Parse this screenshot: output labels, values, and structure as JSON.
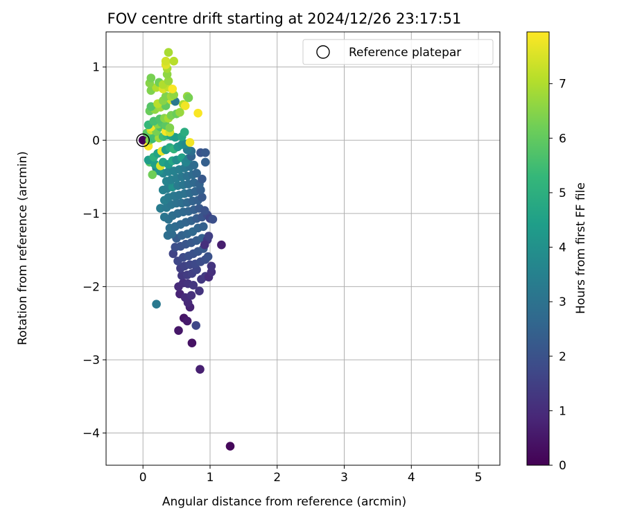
{
  "chart_data": {
    "type": "scatter",
    "title": "FOV centre drift starting at 2024/12/26 23:17:51",
    "xlabel": "Angular distance from reference (arcmin)",
    "ylabel": "Rotation from reference (arcmin)",
    "xlim": [
      -0.55,
      5.32
    ],
    "ylim": [
      -4.44,
      1.48
    ],
    "xticks": [
      0,
      1,
      2,
      3,
      4,
      5
    ],
    "yticks": [
      -4,
      -3,
      -2,
      -1,
      0,
      1
    ],
    "xtick_labels": [
      "0",
      "1",
      "2",
      "3",
      "4",
      "5"
    ],
    "ytick_labels": [
      "−4",
      "−3",
      "−2",
      "−1",
      "0",
      "1"
    ],
    "grid": true,
    "legend": {
      "position": "top-right",
      "label": "Reference platepar"
    },
    "reference_point": {
      "x": 0,
      "y": 0
    },
    "colorbar": {
      "label": "Hours from first FF file",
      "range": [
        0,
        7.95
      ],
      "ticks": [
        0,
        1,
        2,
        3,
        4,
        5,
        6,
        7
      ],
      "tick_labels": [
        "0",
        "1",
        "2",
        "3",
        "4",
        "5",
        "6",
        "7"
      ],
      "colormap": "viridis"
    },
    "points": [
      [
        0.0,
        0.0,
        0.0
      ],
      [
        1.3,
        -4.18,
        0.15
      ],
      [
        0.85,
        -3.13,
        0.7
      ],
      [
        0.73,
        -2.77,
        0.4
      ],
      [
        0.53,
        -2.6,
        0.5
      ],
      [
        0.61,
        -2.43,
        0.45
      ],
      [
        0.66,
        -2.47,
        0.6
      ],
      [
        0.7,
        -2.28,
        0.75
      ],
      [
        0.79,
        -2.53,
        1.7
      ],
      [
        0.2,
        -2.24,
        3.2
      ],
      [
        0.67,
        -2.22,
        0.9
      ],
      [
        0.55,
        -2.1,
        0.8
      ],
      [
        0.63,
        -2.15,
        1.0
      ],
      [
        0.72,
        -2.12,
        1.1
      ],
      [
        0.84,
        -2.06,
        1.2
      ],
      [
        0.53,
        -2.0,
        0.95
      ],
      [
        0.6,
        -1.95,
        1.05
      ],
      [
        0.67,
        -1.96,
        1.15
      ],
      [
        0.75,
        -1.98,
        1.25
      ],
      [
        0.87,
        -1.9,
        1.3
      ],
      [
        0.93,
        -1.86,
        1.35
      ],
      [
        0.98,
        -1.87,
        1.0
      ],
      [
        1.02,
        -1.8,
        1.1
      ],
      [
        1.02,
        -1.72,
        1.2
      ],
      [
        1.17,
        -1.43,
        0.65
      ],
      [
        0.58,
        -1.85,
        1.3
      ],
      [
        0.66,
        -1.84,
        1.4
      ],
      [
        0.73,
        -1.82,
        1.5
      ],
      [
        0.8,
        -1.77,
        1.6
      ],
      [
        0.56,
        -1.75,
        1.45
      ],
      [
        0.62,
        -1.72,
        1.55
      ],
      [
        0.7,
        -1.7,
        1.65
      ],
      [
        0.78,
        -1.69,
        1.75
      ],
      [
        0.86,
        -1.66,
        1.85
      ],
      [
        0.93,
        -1.63,
        1.9
      ],
      [
        0.97,
        -1.59,
        2.0
      ],
      [
        0.52,
        -1.65,
        1.7
      ],
      [
        0.6,
        -1.6,
        1.8
      ],
      [
        0.68,
        -1.58,
        1.9
      ],
      [
        0.75,
        -1.55,
        2.0
      ],
      [
        0.82,
        -1.52,
        2.1
      ],
      [
        0.9,
        -1.48,
        2.2
      ],
      [
        0.45,
        -1.55,
        1.6
      ],
      [
        0.48,
        -1.46,
        1.9
      ],
      [
        0.56,
        -1.45,
        2.0
      ],
      [
        0.64,
        -1.42,
        2.1
      ],
      [
        0.72,
        -1.4,
        2.2
      ],
      [
        0.8,
        -1.37,
        2.3
      ],
      [
        0.88,
        -1.34,
        2.4
      ],
      [
        0.96,
        -1.36,
        1.3
      ],
      [
        0.98,
        -1.31,
        1.5
      ],
      [
        0.92,
        -1.43,
        1.1
      ],
      [
        0.5,
        -1.34,
        2.3
      ],
      [
        0.58,
        -1.3,
        2.5
      ],
      [
        0.66,
        -1.28,
        2.6
      ],
      [
        0.74,
        -1.25,
        2.7
      ],
      [
        0.82,
        -1.2,
        2.6
      ],
      [
        0.9,
        -1.18,
        2.4
      ],
      [
        0.37,
        -1.3,
        2.9
      ],
      [
        0.43,
        -1.28,
        2.8
      ],
      [
        0.4,
        -1.2,
        2.9
      ],
      [
        0.48,
        -1.18,
        2.8
      ],
      [
        0.56,
        -1.15,
        2.7
      ],
      [
        0.64,
        -1.12,
        2.6
      ],
      [
        0.72,
        -1.1,
        2.5
      ],
      [
        0.8,
        -1.07,
        2.3
      ],
      [
        0.88,
        -1.05,
        2.1
      ],
      [
        0.96,
        -1.02,
        1.8
      ],
      [
        1.0,
        -1.07,
        1.6
      ],
      [
        1.04,
        -1.08,
        1.9
      ],
      [
        0.32,
        -1.05,
        3.1
      ],
      [
        0.38,
        -1.08,
        3.0
      ],
      [
        0.44,
        -1.03,
        2.9
      ],
      [
        0.52,
        -1.0,
        2.8
      ],
      [
        0.6,
        -0.98,
        2.7
      ],
      [
        0.68,
        -0.97,
        2.6
      ],
      [
        0.76,
        -0.95,
        2.4
      ],
      [
        0.84,
        -0.93,
        2.2
      ],
      [
        0.92,
        -0.96,
        2.0
      ],
      [
        0.26,
        -0.93,
        3.3
      ],
      [
        0.35,
        -0.92,
        3.2
      ],
      [
        0.42,
        -0.88,
        3.1
      ],
      [
        0.5,
        -0.86,
        3.0
      ],
      [
        0.58,
        -0.86,
        2.9
      ],
      [
        0.66,
        -0.85,
        2.7
      ],
      [
        0.74,
        -0.83,
        2.5
      ],
      [
        0.82,
        -0.82,
        2.4
      ],
      [
        0.88,
        -0.78,
        2.2
      ],
      [
        0.32,
        -0.82,
        3.4
      ],
      [
        0.38,
        -0.78,
        3.3
      ],
      [
        0.46,
        -0.76,
        3.2
      ],
      [
        0.54,
        -0.75,
        3.1
      ],
      [
        0.62,
        -0.73,
        3.0
      ],
      [
        0.7,
        -0.72,
        2.8
      ],
      [
        0.78,
        -0.7,
        2.6
      ],
      [
        0.86,
        -0.68,
        2.4
      ],
      [
        0.3,
        -0.68,
        3.5
      ],
      [
        0.36,
        -0.66,
        3.4
      ],
      [
        0.44,
        -0.64,
        4.0
      ],
      [
        0.52,
        -0.62,
        3.3
      ],
      [
        0.6,
        -0.61,
        3.1
      ],
      [
        0.68,
        -0.6,
        2.9
      ],
      [
        0.76,
        -0.58,
        2.7
      ],
      [
        0.84,
        -0.6,
        2.5
      ],
      [
        0.88,
        -0.53,
        2.2
      ],
      [
        0.35,
        -0.56,
        3.6
      ],
      [
        0.42,
        -0.54,
        3.5
      ],
      [
        0.5,
        -0.52,
        3.4
      ],
      [
        0.58,
        -0.5,
        3.2
      ],
      [
        0.66,
        -0.49,
        3.0
      ],
      [
        0.74,
        -0.47,
        2.8
      ],
      [
        0.8,
        -0.45,
        2.6
      ],
      [
        0.3,
        -0.45,
        3.7
      ],
      [
        0.38,
        -0.43,
        3.6
      ],
      [
        0.46,
        -0.42,
        3.5
      ],
      [
        0.54,
        -0.4,
        3.4
      ],
      [
        0.62,
        -0.38,
        3.2
      ],
      [
        0.7,
        -0.36,
        3.0
      ],
      [
        0.76,
        -0.34,
        2.8
      ],
      [
        0.2,
        -0.38,
        3.5
      ],
      [
        0.24,
        -0.42,
        4.1
      ],
      [
        0.14,
        -0.47,
        6.2
      ],
      [
        0.1,
        -0.3,
        5.8
      ],
      [
        0.08,
        -0.27,
        4.4
      ],
      [
        0.18,
        -0.33,
        4.5
      ],
      [
        0.26,
        -0.35,
        7.5
      ],
      [
        0.3,
        -0.3,
        4.6
      ],
      [
        0.38,
        -0.33,
        4.3
      ],
      [
        0.44,
        -0.28,
        4.7
      ],
      [
        0.5,
        -0.27,
        3.9
      ],
      [
        0.58,
        -0.24,
        4.5
      ],
      [
        0.64,
        -0.3,
        3.6
      ],
      [
        0.68,
        -0.25,
        3.5
      ],
      [
        0.72,
        -0.22,
        2.5
      ],
      [
        0.72,
        -0.15,
        2.9
      ],
      [
        0.66,
        -0.13,
        3.3
      ],
      [
        0.86,
        -0.17,
        2.1
      ],
      [
        0.93,
        -0.17,
        2.2
      ],
      [
        0.93,
        -0.3,
        2.4
      ],
      [
        0.16,
        -0.23,
        5.0
      ],
      [
        0.22,
        -0.18,
        4.6
      ],
      [
        0.28,
        -0.15,
        7.7
      ],
      [
        0.34,
        -0.13,
        4.4
      ],
      [
        0.4,
        -0.1,
        4.8
      ],
      [
        0.46,
        -0.12,
        5.2
      ],
      [
        0.52,
        -0.09,
        4.2
      ],
      [
        0.58,
        -0.06,
        4.0
      ],
      [
        0.64,
        -0.05,
        3.8
      ],
      [
        0.7,
        -0.03,
        7.8
      ],
      [
        0.08,
        -0.08,
        7.9
      ],
      [
        0.1,
        0.0,
        6.5
      ],
      [
        0.14,
        0.02,
        5.4
      ],
      [
        0.18,
        0.05,
        5.6
      ],
      [
        0.24,
        0.03,
        6.8
      ],
      [
        0.3,
        0.05,
        5.5
      ],
      [
        0.36,
        0.07,
        5.2
      ],
      [
        0.42,
        0.06,
        4.6
      ],
      [
        0.48,
        0.04,
        4.4
      ],
      [
        0.58,
        0.05,
        4.7
      ],
      [
        0.62,
        0.11,
        4.9
      ],
      [
        0.06,
        0.1,
        5.9
      ],
      [
        0.12,
        0.14,
        7.3
      ],
      [
        0.2,
        0.12,
        6.3
      ],
      [
        0.26,
        0.18,
        5.7
      ],
      [
        0.34,
        0.12,
        7.9
      ],
      [
        0.4,
        0.11,
        7.4
      ],
      [
        0.12,
        0.18,
        7.8
      ],
      [
        0.22,
        0.22,
        6.5
      ],
      [
        0.28,
        0.24,
        5.8
      ],
      [
        0.34,
        0.2,
        5.9
      ],
      [
        0.4,
        0.17,
        6.4
      ],
      [
        0.08,
        0.21,
        5.3
      ],
      [
        0.16,
        0.26,
        5.6
      ],
      [
        0.25,
        0.29,
        5.7
      ],
      [
        0.32,
        0.3,
        6.5
      ],
      [
        0.38,
        0.3,
        6.9
      ],
      [
        0.42,
        0.34,
        6.3
      ],
      [
        0.5,
        0.36,
        6.1
      ],
      [
        0.55,
        0.38,
        6.7
      ],
      [
        0.82,
        0.37,
        7.9
      ],
      [
        0.1,
        0.4,
        6.1
      ],
      [
        0.18,
        0.42,
        6.6
      ],
      [
        0.26,
        0.45,
        6.8
      ],
      [
        0.34,
        0.47,
        6.0
      ],
      [
        0.12,
        0.46,
        5.8
      ],
      [
        0.22,
        0.5,
        7.1
      ],
      [
        0.3,
        0.54,
        6.5
      ],
      [
        0.42,
        0.55,
        7.4
      ],
      [
        0.48,
        0.53,
        3.2
      ],
      [
        0.6,
        0.49,
        7.0
      ],
      [
        0.63,
        0.47,
        7.8
      ],
      [
        0.34,
        0.6,
        6.4
      ],
      [
        0.42,
        0.6,
        6.8
      ],
      [
        0.46,
        0.62,
        6.6
      ],
      [
        0.66,
        0.6,
        6.7
      ],
      [
        0.68,
        0.58,
        6.3
      ],
      [
        0.12,
        0.68,
        6.4
      ],
      [
        0.2,
        0.72,
        7.0
      ],
      [
        0.3,
        0.7,
        7.5
      ],
      [
        0.38,
        0.72,
        7.2
      ],
      [
        0.44,
        0.7,
        7.9
      ],
      [
        0.1,
        0.78,
        6.5
      ],
      [
        0.24,
        0.79,
        6.2
      ],
      [
        0.3,
        0.76,
        7.0
      ],
      [
        0.38,
        0.81,
        6.7
      ],
      [
        0.12,
        0.85,
        6.3
      ],
      [
        0.36,
        0.9,
        6.6
      ],
      [
        0.36,
        0.98,
        6.9
      ],
      [
        0.34,
        1.03,
        7.6
      ],
      [
        0.34,
        1.08,
        7.4
      ],
      [
        0.46,
        1.08,
        7.1
      ],
      [
        0.38,
        1.2,
        6.9
      ]
    ]
  }
}
